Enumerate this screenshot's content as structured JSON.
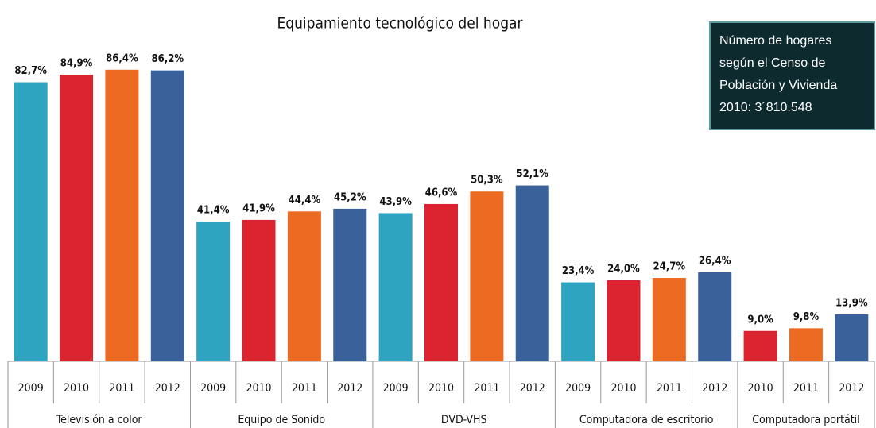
{
  "chart_data": {
    "type": "bar",
    "title": "Equipamiento tecnológico del hogar",
    "annotation": [
      "Número de hogares",
      "según  el Censo de",
      "Población y Vivienda",
      "2010: 3´810.548"
    ],
    "groups": [
      {
        "name": "Televisión a color",
        "categories": [
          "2009",
          "2010",
          "2011",
          "2012"
        ],
        "values": [
          82.7,
          84.9,
          86.4,
          86.2
        ],
        "value_labels": [
          "82,7%",
          "84,9%",
          "86,4%",
          "86,2%"
        ],
        "colors": [
          "#2fa4c0",
          "#dc2430",
          "#ec6a22",
          "#3a6199"
        ]
      },
      {
        "name": "Equipo de Sonido",
        "categories": [
          "2009",
          "2010",
          "2011",
          "2012"
        ],
        "values": [
          41.4,
          41.9,
          44.4,
          45.2
        ],
        "value_labels": [
          "41,4%",
          "41,9%",
          "44,4%",
          "45,2%"
        ],
        "colors": [
          "#2fa4c0",
          "#dc2430",
          "#ec6a22",
          "#3a6199"
        ]
      },
      {
        "name": "DVD-VHS",
        "categories": [
          "2009",
          "2010",
          "2011",
          "2012"
        ],
        "values": [
          43.9,
          46.6,
          50.3,
          52.1
        ],
        "value_labels": [
          "43,9%",
          "46,6%",
          "50,3%",
          "52,1%"
        ],
        "colors": [
          "#2fa4c0",
          "#dc2430",
          "#ec6a22",
          "#3a6199"
        ]
      },
      {
        "name": "Computadora de escritorio",
        "categories": [
          "2009",
          "2010",
          "2011",
          "2012"
        ],
        "values": [
          23.4,
          24.0,
          24.7,
          26.4
        ],
        "value_labels": [
          "23,4%",
          "24,0%",
          "24,7%",
          "26,4%"
        ],
        "colors": [
          "#2fa4c0",
          "#dc2430",
          "#ec6a22",
          "#3a6199"
        ]
      },
      {
        "name": "Computadora portátil",
        "categories": [
          "2010",
          "2011",
          "2012"
        ],
        "values": [
          9.0,
          9.8,
          13.9
        ],
        "value_labels": [
          "9,0%",
          "9,8%",
          "13,9%"
        ],
        "colors": [
          "#dc2430",
          "#ec6a22",
          "#3a6199"
        ]
      }
    ]
  }
}
